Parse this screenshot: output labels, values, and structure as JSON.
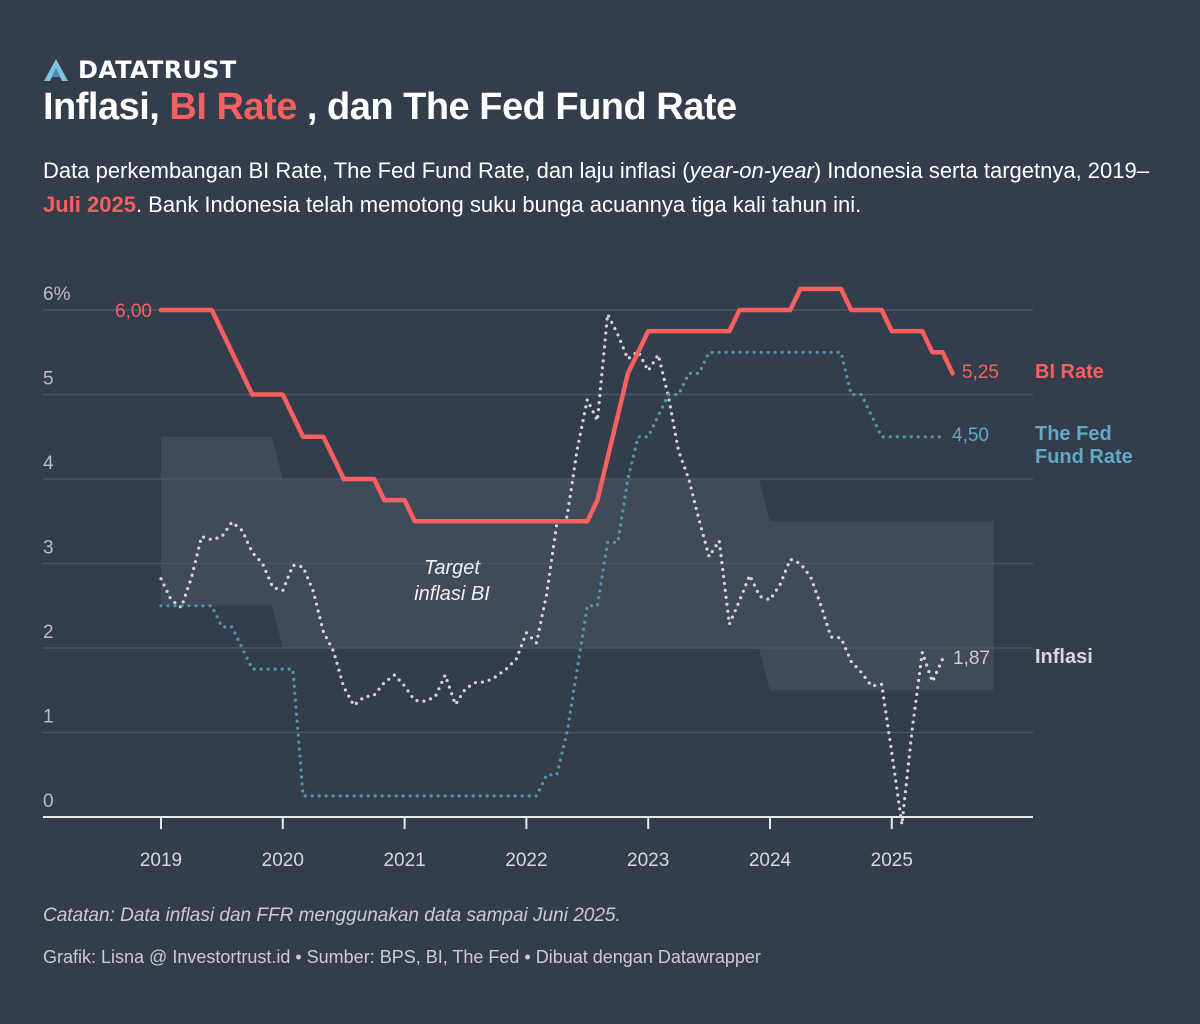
{
  "brand": {
    "name": "DATATRUST"
  },
  "header": {
    "title_part1": "Inflasi, ",
    "title_highlight": "BI Rate",
    "title_part2": " , dan The Fed Fund Rate",
    "subtitle_part1": "Data perkembangan BI Rate, The Fed Fund Rate, dan laju inflasi (",
    "subtitle_italic": "year-on-year",
    "subtitle_part2": ") Indonesia serta targetnya, 2019–",
    "subtitle_highlight": "Juli 2025",
    "subtitle_part3": ". Bank Indonesia telah memotong suku bunga acuannya tiga kali tahun ini."
  },
  "footer": {
    "note": "Catatan: Data inflasi dan FFR menggunakan data sampai Juni 2025.",
    "source": "Grafik: Lisna @ Investortrust.id • Sumber: BPS, BI, The Fed • Dibuat dengan Datawrapper"
  },
  "colors": {
    "background": "#333d4c",
    "bi_rate": "#f8605f",
    "ffr": "#4f97b1",
    "ffr_label": "#63a9c6",
    "inflation": "#d3d7dd",
    "target_band": "#414a58"
  },
  "chart_data": {
    "type": "line",
    "start_month": "2019-01",
    "frequency": "monthly",
    "ylim": [
      0,
      6.2
    ],
    "y_ticks": [
      0,
      1,
      2,
      3,
      4,
      5,
      6
    ],
    "y_tick_labels": [
      "0",
      "1",
      "2",
      "3",
      "4",
      "5",
      "6%"
    ],
    "x_ticks": [
      "2019",
      "2020",
      "2021",
      "2022",
      "2023",
      "2024",
      "2025"
    ],
    "grid": true,
    "series": [
      {
        "name": "BI Rate",
        "key": "bi",
        "start_label": "6,00",
        "end_label": "5,25",
        "values": [
          6,
          6,
          6,
          6,
          6,
          6,
          5.75,
          5.5,
          5.25,
          5,
          5,
          5,
          5,
          4.75,
          4.5,
          4.5,
          4.5,
          4.25,
          4,
          4,
          4,
          4,
          3.75,
          3.75,
          3.75,
          3.5,
          3.5,
          3.5,
          3.5,
          3.5,
          3.5,
          3.5,
          3.5,
          3.5,
          3.5,
          3.5,
          3.5,
          3.5,
          3.5,
          3.5,
          3.5,
          3.5,
          3.5,
          3.75,
          4.25,
          4.75,
          5.25,
          5.5,
          5.75,
          5.75,
          5.75,
          5.75,
          5.75,
          5.75,
          5.75,
          5.75,
          5.75,
          6,
          6,
          6,
          6,
          6,
          6,
          6.25,
          6.25,
          6.25,
          6.25,
          6.25,
          6,
          6,
          6,
          6,
          5.75,
          5.75,
          5.75,
          5.75,
          5.5,
          5.5,
          5.25
        ]
      },
      {
        "name_lines": [
          "The Fed",
          "Fund Rate"
        ],
        "key": "ffr",
        "end_label": "4,50",
        "values": [
          2.5,
          2.5,
          2.5,
          2.5,
          2.5,
          2.5,
          2.25,
          2.25,
          2,
          1.75,
          1.75,
          1.75,
          1.75,
          1.75,
          0.25,
          0.25,
          0.25,
          0.25,
          0.25,
          0.25,
          0.25,
          0.25,
          0.25,
          0.25,
          0.25,
          0.25,
          0.25,
          0.25,
          0.25,
          0.25,
          0.25,
          0.25,
          0.25,
          0.25,
          0.25,
          0.25,
          0.25,
          0.25,
          0.5,
          0.5,
          1,
          1.75,
          2.5,
          2.5,
          3.25,
          3.25,
          4,
          4.5,
          4.5,
          4.75,
          5,
          5,
          5.25,
          5.25,
          5.5,
          5.5,
          5.5,
          5.5,
          5.5,
          5.5,
          5.5,
          5.5,
          5.5,
          5.5,
          5.5,
          5.5,
          5.5,
          5.5,
          5,
          5,
          4.75,
          4.5,
          4.5,
          4.5,
          4.5,
          4.5,
          4.5,
          4.5
        ]
      },
      {
        "name": "Inflasi",
        "key": "inf",
        "end_label": "1,87",
        "values": [
          2.82,
          2.57,
          2.48,
          2.83,
          3.32,
          3.28,
          3.32,
          3.49,
          3.39,
          3.13,
          3.0,
          2.72,
          2.68,
          2.98,
          2.96,
          2.67,
          2.19,
          1.96,
          1.54,
          1.32,
          1.42,
          1.44,
          1.59,
          1.68,
          1.55,
          1.38,
          1.37,
          1.42,
          1.68,
          1.33,
          1.52,
          1.59,
          1.6,
          1.66,
          1.75,
          1.87,
          2.18,
          2.06,
          2.64,
          3.47,
          3.55,
          4.35,
          4.94,
          4.69,
          5.95,
          5.71,
          5.42,
          5.51,
          5.28,
          5.47,
          4.97,
          4.33,
          4.0,
          3.52,
          3.08,
          3.27,
          2.28,
          2.56,
          2.86,
          2.61,
          2.57,
          2.75,
          3.05,
          3.0,
          2.84,
          2.51,
          2.13,
          2.12,
          1.84,
          1.71,
          1.55,
          1.57,
          0.76,
          -0.09,
          1.03,
          1.95,
          1.6,
          1.87
        ]
      }
    ],
    "target_band": {
      "label_lines": [
        "Target",
        "inflasi BI"
      ],
      "periods": [
        {
          "from": "2019",
          "to": "2020",
          "low": 2.5,
          "high": 4.5
        },
        {
          "from": "2020",
          "to": "2024",
          "low": 2,
          "high": 4
        },
        {
          "from": "2024",
          "to": "2025-11",
          "low": 1.5,
          "high": 3.5
        }
      ]
    }
  }
}
